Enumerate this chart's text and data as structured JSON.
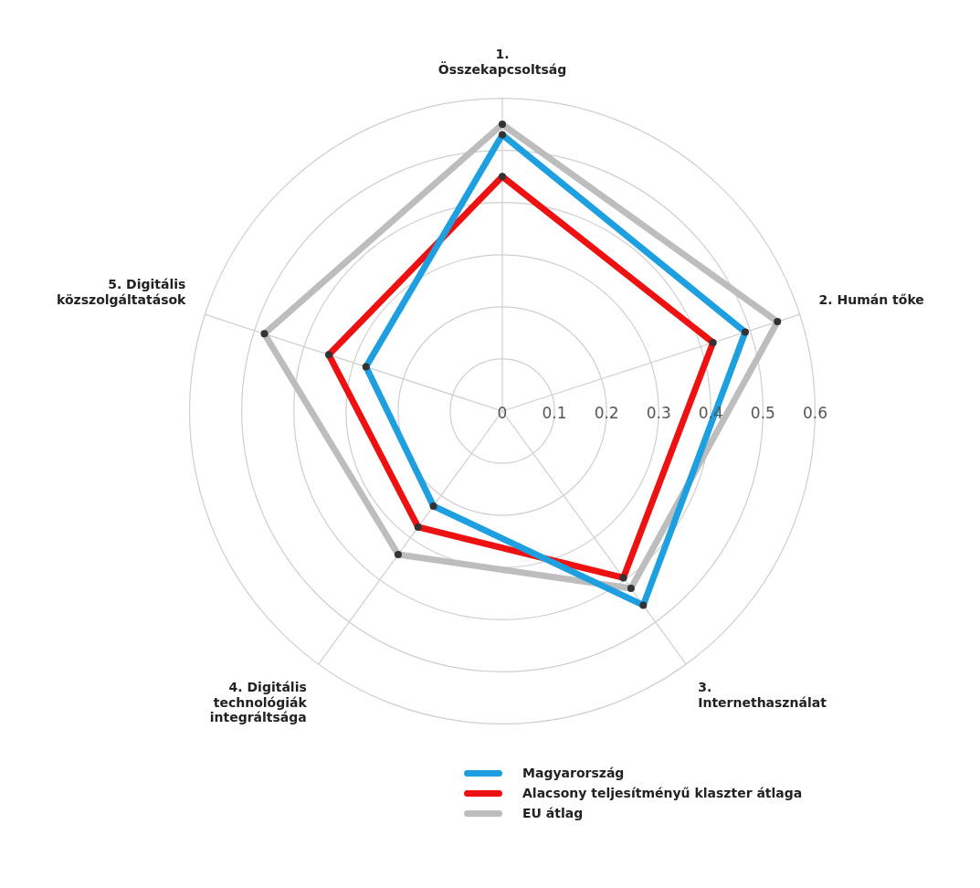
{
  "chart_data": {
    "type": "radar",
    "categories": [
      "1. Összekapcsoltság",
      "2. Humán tőke",
      "3. Internethasználat",
      "4. Digitális technológiák integráltsága",
      "5. Digitális közszolgáltatások"
    ],
    "series": [
      {
        "name": "Magyarország",
        "color": "#1e9fe0",
        "values": [
          0.53,
          0.49,
          0.46,
          0.225,
          0.275
        ]
      },
      {
        "name": "Alacsony teljesítményű klaszter átlaga",
        "color": "#ee1111",
        "values": [
          0.45,
          0.425,
          0.395,
          0.275,
          0.35
        ]
      },
      {
        "name": "EU átlag",
        "color": "#bdbdbd",
        "values": [
          0.55,
          0.555,
          0.42,
          0.34,
          0.48
        ]
      }
    ],
    "ylim": [
      0,
      0.6
    ],
    "yticks": [
      0,
      0.1,
      0.2,
      0.3,
      0.4,
      0.5,
      0.6
    ],
    "grid": true,
    "legend": "bottom",
    "marker": "circle",
    "line_style": "solid"
  }
}
